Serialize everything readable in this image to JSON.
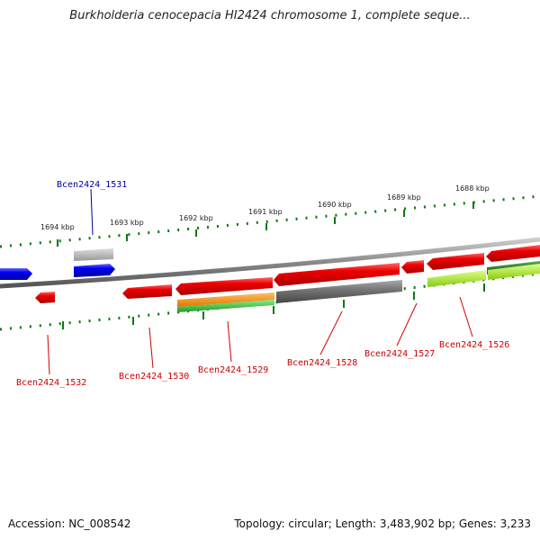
{
  "title": "Burkholderia cenocepacia HI2424 chromosome 1, complete seque...",
  "footer": {
    "accession": "Accession: NC_008542",
    "summary": "Topology: circular; Length: 3,483,902 bp; Genes: 3,233"
  },
  "ruler_labels": [
    "1694 kbp",
    "1693 kbp",
    "1692 kbp",
    "1691 kbp",
    "1690 kbp",
    "1689 kbp",
    "1688 kbp"
  ],
  "gene_labels": [
    "Bcen2424_1531",
    "Bcen2424_1532",
    "Bcen2424_1530",
    "Bcen2424_1529",
    "Bcen2424_1528",
    "Bcen2424_1527",
    "Bcen2424_1526"
  ],
  "colors": {
    "forward_gene": "#e00000",
    "reverse_gene": "#0000ee",
    "hypothetical": "#777777",
    "orange_feature": "#ff9900",
    "green_feature": "#33bb33",
    "lime_feature": "#aaee22",
    "dark_green_feature": "#228822",
    "backbone": "#888888",
    "tick": "#116611",
    "label_red": "#cc0000",
    "label_blue": "#000099"
  }
}
